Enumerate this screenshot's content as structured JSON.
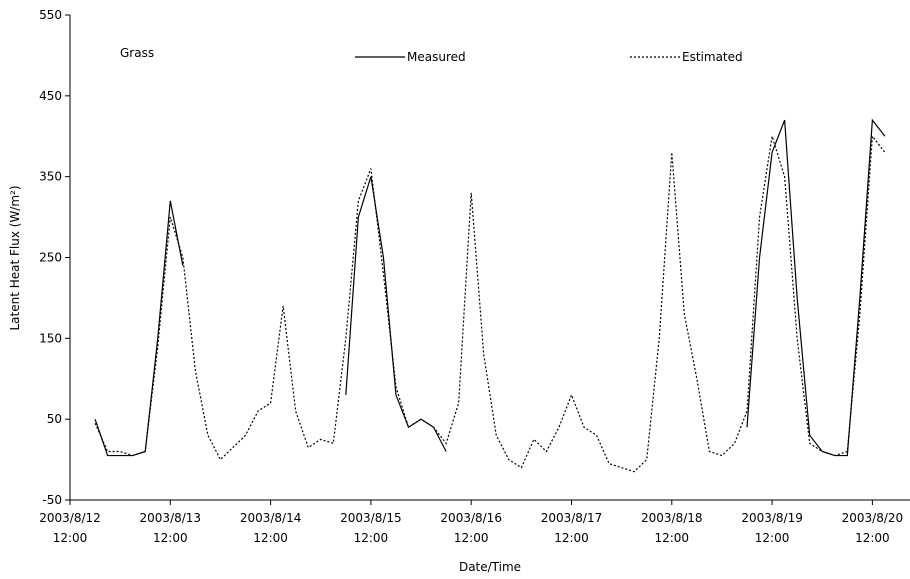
{
  "chart_data": {
    "type": "line",
    "annotation": "Grass",
    "xlabel": "Date/Time",
    "ylabel": "Latent Heat Flux (W/m²)",
    "x": [
      "2003/8/12 18:00",
      "2003/8/12 21:00",
      "2003/8/13 0:00",
      "2003/8/13 3:00",
      "2003/8/13 6:00",
      "2003/8/13 9:00",
      "2003/8/13 12:00",
      "2003/8/13 15:00",
      "2003/8/13 18:00",
      "2003/8/13 21:00",
      "2003/8/14 0:00",
      "2003/8/14 3:00",
      "2003/8/14 6:00",
      "2003/8/14 9:00",
      "2003/8/14 12:00",
      "2003/8/14 15:00",
      "2003/8/14 18:00",
      "2003/8/14 21:00",
      "2003/8/15 0:00",
      "2003/8/15 3:00",
      "2003/8/15 6:00",
      "2003/8/15 9:00",
      "2003/8/15 12:00",
      "2003/8/15 15:00",
      "2003/8/15 18:00",
      "2003/8/15 21:00",
      "2003/8/16 0:00",
      "2003/8/16 3:00",
      "2003/8/16 6:00",
      "2003/8/16 9:00",
      "2003/8/16 12:00",
      "2003/8/16 15:00",
      "2003/8/16 18:00",
      "2003/8/16 21:00",
      "2003/8/17 0:00",
      "2003/8/17 3:00",
      "2003/8/17 6:00",
      "2003/8/17 9:00",
      "2003/8/17 12:00",
      "2003/8/17 15:00",
      "2003/8/17 18:00",
      "2003/8/17 21:00",
      "2003/8/18 0:00",
      "2003/8/18 3:00",
      "2003/8/18 6:00",
      "2003/8/18 9:00",
      "2003/8/18 12:00",
      "2003/8/18 15:00",
      "2003/8/18 18:00",
      "2003/8/18 21:00",
      "2003/8/19 0:00",
      "2003/8/19 3:00",
      "2003/8/19 6:00",
      "2003/8/19 9:00",
      "2003/8/19 12:00",
      "2003/8/19 15:00",
      "2003/8/19 18:00",
      "2003/8/19 21:00",
      "2003/8/20 0:00",
      "2003/8/20 3:00",
      "2003/8/20 6:00",
      "2003/8/20 9:00",
      "2003/8/20 12:00",
      "2003/8/20 15:00"
    ],
    "series": [
      {
        "name": "Measured",
        "color": "#000000",
        "dash": "solid",
        "values": [
          50,
          5,
          5,
          5,
          10,
          150,
          320,
          240,
          null,
          null,
          null,
          null,
          null,
          null,
          null,
          null,
          null,
          null,
          null,
          null,
          80,
          300,
          350,
          250,
          80,
          40,
          50,
          40,
          10,
          null,
          null,
          null,
          null,
          null,
          null,
          null,
          null,
          null,
          null,
          null,
          null,
          null,
          null,
          null,
          null,
          null,
          null,
          null,
          null,
          null,
          null,
          null,
          40,
          250,
          380,
          420,
          200,
          30,
          10,
          5,
          5,
          200,
          420,
          400
        ]
      },
      {
        "name": "Estimated",
        "color": "#000000",
        "dash": "dotted",
        "values": [
          45,
          10,
          10,
          5,
          10,
          140,
          300,
          250,
          110,
          30,
          0,
          15,
          30,
          60,
          70,
          190,
          60,
          15,
          25,
          20,
          150,
          320,
          360,
          230,
          90,
          40,
          50,
          40,
          20,
          70,
          330,
          130,
          30,
          0,
          -10,
          25,
          10,
          40,
          80,
          40,
          30,
          -5,
          -10,
          -15,
          0,
          150,
          380,
          180,
          100,
          10,
          5,
          20,
          60,
          300,
          400,
          350,
          150,
          20,
          10,
          5,
          10,
          180,
          400,
          380
        ]
      }
    ],
    "xlim": [
      "2003/8/12 12:00",
      "2003/8/20 21:00"
    ],
    "xticks": [
      "2003/8/12 12:00",
      "2003/8/13 12:00",
      "2003/8/14 12:00",
      "2003/8/15 12:00",
      "2003/8/16 12:00",
      "2003/8/17 12:00",
      "2003/8/18 12:00",
      "2003/8/19 12:00",
      "2003/8/20 12:00"
    ],
    "ylim": [
      -50,
      550
    ],
    "yticks": [
      -50,
      50,
      150,
      250,
      350,
      450,
      550
    ],
    "grid": false
  }
}
